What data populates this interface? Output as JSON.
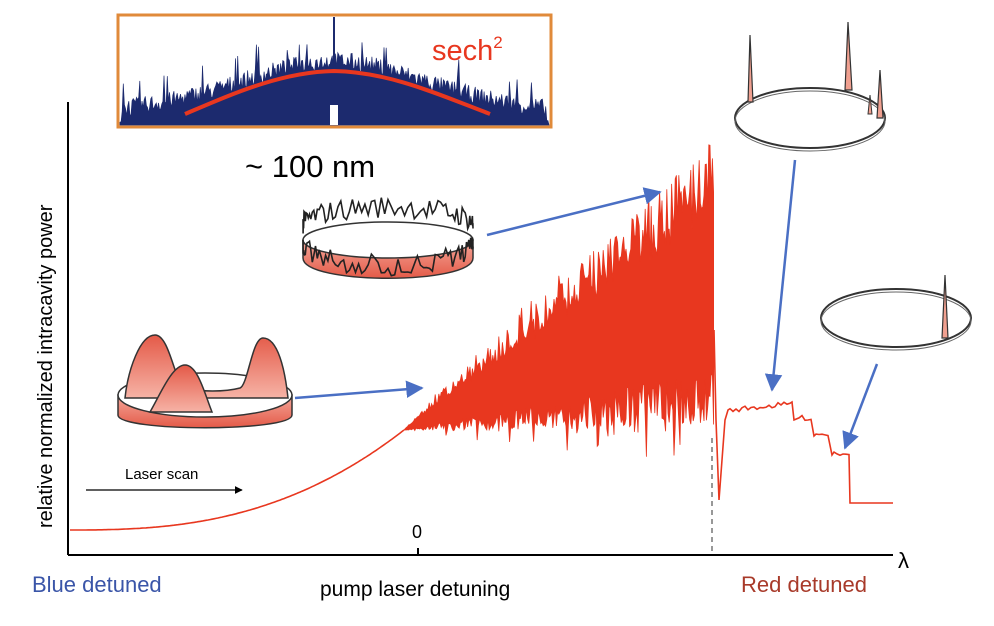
{
  "axes": {
    "y_label": "relative normalized intracavity power",
    "x_label": "pump laser detuning",
    "x_end_label": "λ",
    "zero_tick": "0"
  },
  "annotations": {
    "blue_detuned": "Blue detuned",
    "red_detuned": "Red detuned",
    "laser_scan": "Laser scan",
    "bandwidth": "~ 100 nm",
    "inset_fit_base": "sech",
    "inset_fit_exp": "2"
  },
  "colors": {
    "trace": "#e8371f",
    "arrow": "#4a6fc4",
    "blue_text": "#3a55a8",
    "red_text": "#a83a2a",
    "inset_border": "#e08a3a",
    "inset_fill": "#1c2a6e"
  }
}
